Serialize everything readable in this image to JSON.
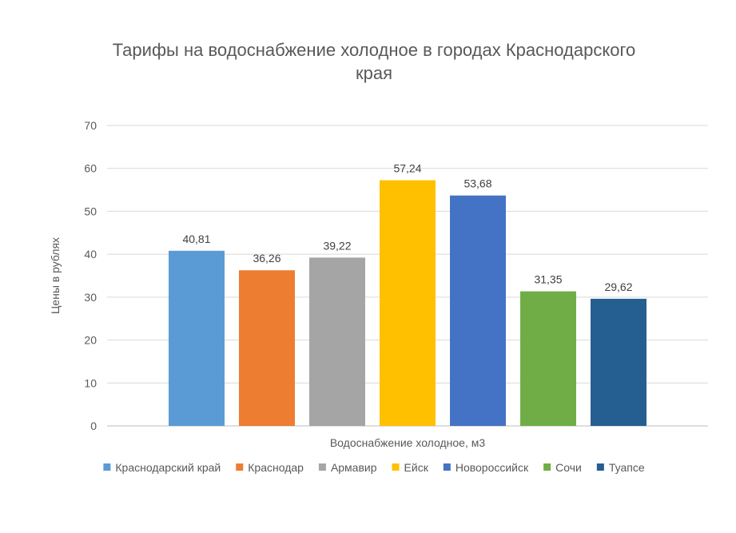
{
  "chart_data": {
    "type": "bar",
    "title_lines": [
      "Тарифы на водоснабжение холодное в городах Краснодарского",
      "края"
    ],
    "xlabel": "Водоснабжение холодное, м3",
    "ylabel": "Цены в рублях",
    "ylim": [
      0,
      70
    ],
    "yticks": [
      0,
      10,
      20,
      30,
      40,
      50,
      60,
      70
    ],
    "grid": true,
    "legend_position": "bottom",
    "series": [
      {
        "name": "Краснодарский край",
        "value": 40.81,
        "label": "40,81",
        "color": "#5B9BD5"
      },
      {
        "name": "Краснодар",
        "value": 36.26,
        "label": "36,26",
        "color": "#ED7D31"
      },
      {
        "name": "Армавир",
        "value": 39.22,
        "label": "39,22",
        "color": "#A5A5A5"
      },
      {
        "name": "Ейск",
        "value": 57.24,
        "label": "57,24",
        "color": "#FFC000"
      },
      {
        "name": "Новороссийск",
        "value": 53.68,
        "label": "53,68",
        "color": "#4472C4"
      },
      {
        "name": "Сочи",
        "value": 31.35,
        "label": "31,35",
        "color": "#70AD47"
      },
      {
        "name": "Туапсе",
        "value": 29.62,
        "label": "29,62",
        "color": "#255E91"
      }
    ]
  }
}
